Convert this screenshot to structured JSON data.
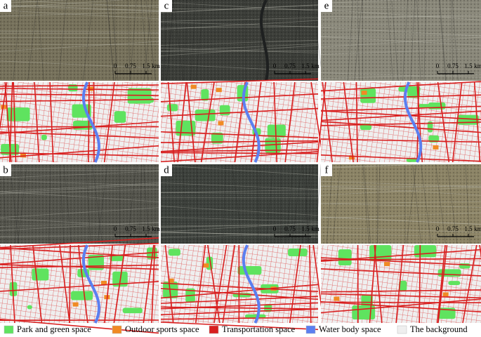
{
  "panels": [
    {
      "label": "a"
    },
    {
      "label": "b"
    },
    {
      "label": "c"
    },
    {
      "label": "d"
    },
    {
      "label": "e"
    },
    {
      "label": "f"
    }
  ],
  "scale_bar": {
    "labels": [
      "0",
      "0.75",
      "1.5"
    ],
    "unit": "km"
  },
  "legend": [
    {
      "name": "Park and green space",
      "color": "#5fe35f"
    },
    {
      "name": "Outdoor sports space",
      "color": "#f08a24"
    },
    {
      "name": "Transportation space",
      "color": "#d81f1f"
    },
    {
      "name": "Water body space",
      "color": "#5b7ff0"
    },
    {
      "name": "The background",
      "color": "#efefef"
    }
  ]
}
